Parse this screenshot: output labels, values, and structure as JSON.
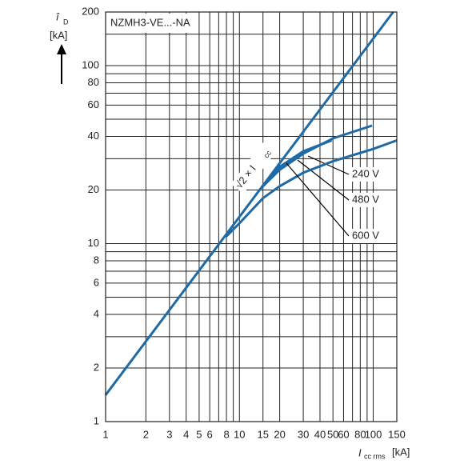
{
  "chart_data": {
    "type": "line",
    "title": "NZMH3-VE...-NA",
    "x_label": {
      "symbol": "I",
      "sub": "cc rms",
      "unit": "[kA]"
    },
    "y_label": {
      "symbol": "î",
      "sub": "D",
      "unit": "[kA]"
    },
    "log_x": true,
    "log_y": true,
    "grid": true,
    "xlim": [
      1,
      150
    ],
    "ylim": [
      1,
      200
    ],
    "xticks": [
      1,
      2,
      3,
      4,
      5,
      6,
      8,
      10,
      15,
      20,
      30,
      40,
      50,
      60,
      80,
      100,
      150
    ],
    "xminor": [
      7,
      9,
      70,
      90
    ],
    "yticks": [
      1,
      2,
      4,
      6,
      8,
      10,
      20,
      40,
      60,
      80,
      100,
      200
    ],
    "yminor": [
      3,
      5,
      7,
      9,
      30,
      50,
      70,
      90,
      150
    ],
    "annotation": {
      "text": "√2 × I",
      "sub": "cc"
    },
    "series": [
      {
        "name": null,
        "color": "#1f6aa5",
        "x": [
          1,
          141
        ],
        "values": [
          1.41,
          200
        ]
      },
      {
        "name": "240 V",
        "color": "#1f6aa5",
        "x": [
          15,
          20,
          30,
          50,
          98
        ],
        "values": [
          21,
          26,
          32,
          39,
          46
        ]
      },
      {
        "name": "480 V",
        "color": "#1f6aa5",
        "x": [
          15,
          20,
          30,
          49
        ],
        "values": [
          21,
          27,
          33,
          38
        ]
      },
      {
        "name": "600 V",
        "color": "#1f6aa5",
        "x": [
          8,
          10,
          15,
          20,
          30,
          50,
          100,
          150
        ],
        "values": [
          11,
          13,
          18,
          21,
          25,
          29,
          34,
          38
        ]
      }
    ]
  }
}
